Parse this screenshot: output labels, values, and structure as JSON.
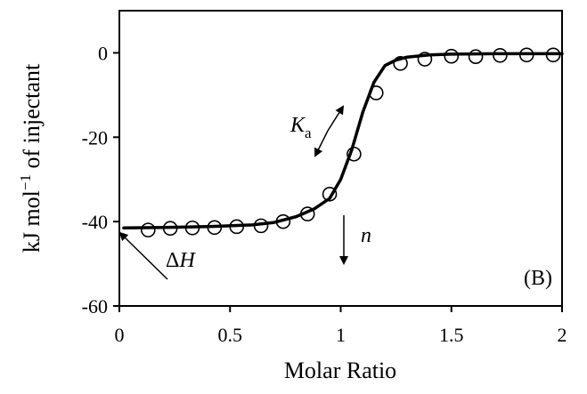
{
  "chart_data": {
    "type": "scatter",
    "title": "",
    "xlabel": "Molar Ratio",
    "ylabel_main": "kJ mol",
    "ylabel_sup": "−1",
    "ylabel_tail": " of injectant",
    "xlim": [
      0,
      2
    ],
    "ylim": [
      -60,
      10
    ],
    "x_ticks": [
      0,
      0.5,
      1,
      1.5,
      2
    ],
    "x_tick_labels": [
      "0",
      "0.5",
      "1",
      "1.5",
      "2"
    ],
    "y_ticks": [
      -60,
      -40,
      -20,
      0
    ],
    "y_tick_labels": [
      "-60",
      "-40",
      "-20",
      "0"
    ],
    "grid": false,
    "series": [
      {
        "kind": "scatter",
        "marker": "open-circle",
        "x": [
          0.13,
          0.23,
          0.33,
          0.43,
          0.53,
          0.64,
          0.74,
          0.85,
          0.95,
          1.06,
          1.16,
          1.27,
          1.38,
          1.5,
          1.61,
          1.72,
          1.84,
          1.96
        ],
        "y": [
          -42.0,
          -41.6,
          -41.5,
          -41.4,
          -41.2,
          -41.0,
          -40.0,
          -38.2,
          -33.5,
          -24.0,
          -9.5,
          -2.5,
          -1.5,
          -0.8,
          -0.9,
          -0.6,
          -0.5,
          -0.5
        ]
      },
      {
        "kind": "line",
        "x": [
          0.02,
          0.2,
          0.4,
          0.6,
          0.7,
          0.8,
          0.88,
          0.95,
          1.0,
          1.05,
          1.1,
          1.15,
          1.2,
          1.25,
          1.3,
          1.4,
          1.5,
          1.7,
          2.0
        ],
        "y": [
          -41.5,
          -41.4,
          -41.2,
          -40.8,
          -40.2,
          -38.8,
          -37.0,
          -34.5,
          -30.0,
          -23.0,
          -14.0,
          -7.0,
          -3.0,
          -1.7,
          -1.0,
          -0.5,
          -0.3,
          -0.2,
          -0.2
        ]
      }
    ],
    "annotations": {
      "ka_main": "K",
      "ka_sub": "a",
      "n": "n",
      "dh_delta": "Δ",
      "dh_h": "H",
      "panel": "(B)"
    }
  }
}
